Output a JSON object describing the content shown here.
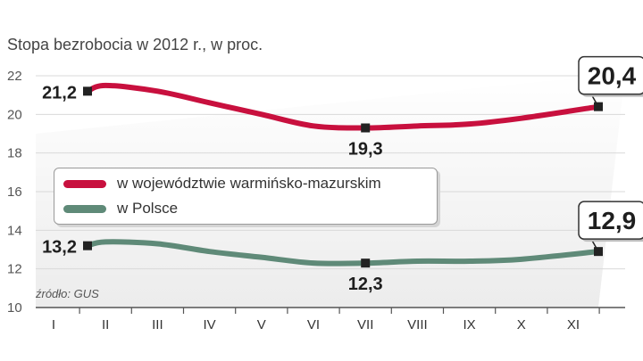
{
  "title": "Stopa bezrobocia w 2012 r., w proc.",
  "source": "źródło: GUS",
  "colors": {
    "regional": "#c8103e",
    "national": "#5f8a78",
    "axis": "#555555",
    "grid": "#d9d9d9",
    "band": "#ececec"
  },
  "chart_data": {
    "type": "line",
    "categories": [
      "I",
      "II",
      "III",
      "IV",
      "V",
      "VI",
      "VII",
      "VIII",
      "IX",
      "X",
      "XI"
    ],
    "ylim": [
      10,
      22
    ],
    "yticks": [
      10,
      12,
      14,
      16,
      18,
      20,
      22
    ],
    "grid": true,
    "legend_position": "center-left",
    "series": [
      {
        "name": "w województwie warmińsko-mazurskim",
        "color": "#c8103e",
        "values": [
          21.2,
          21.5,
          21.2,
          20.6,
          20.0,
          19.4,
          19.3,
          19.4,
          19.5,
          19.8,
          20.4
        ]
      },
      {
        "name": "w Polsce",
        "color": "#5f8a78",
        "values": [
          13.2,
          13.4,
          13.3,
          12.9,
          12.6,
          12.3,
          12.3,
          12.4,
          12.4,
          12.5,
          12.9
        ]
      }
    ],
    "labels": [
      {
        "text": "21,2",
        "series": 0,
        "index": 0,
        "style": "plain",
        "place": "left"
      },
      {
        "text": "19,3",
        "series": 0,
        "index": 6,
        "style": "plain",
        "place": "below"
      },
      {
        "text": "20,4",
        "series": 0,
        "index": 10,
        "style": "boxed",
        "place": "above"
      },
      {
        "text": "13,2",
        "series": 1,
        "index": 0,
        "style": "plain",
        "place": "left"
      },
      {
        "text": "12,3",
        "series": 1,
        "index": 6,
        "style": "plain",
        "place": "below"
      },
      {
        "text": "12,9",
        "series": 1,
        "index": 10,
        "style": "boxed",
        "place": "above"
      }
    ]
  }
}
